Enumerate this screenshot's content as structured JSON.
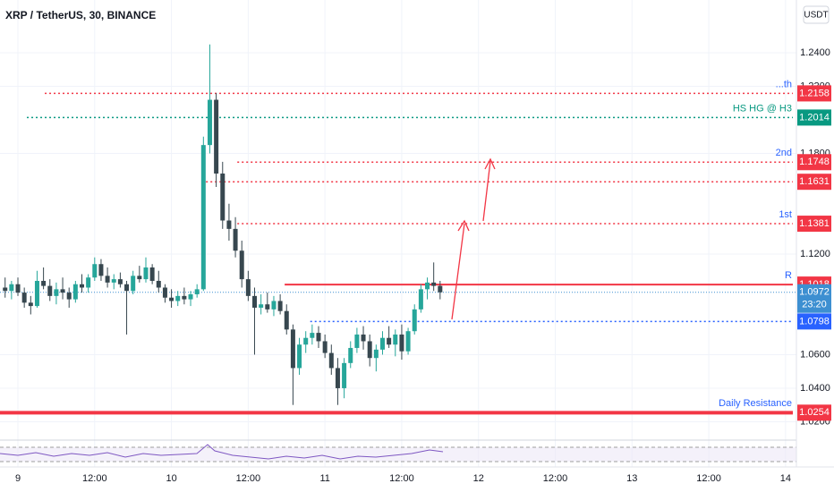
{
  "chart_data": {
    "type": "candlestick",
    "title": "XRP / TetherUS, 30, BINANCE",
    "currency": "USDT",
    "x": [
      -2,
      -1,
      0,
      1,
      2,
      3,
      4,
      5,
      6,
      7,
      8,
      9,
      10,
      11,
      12,
      13,
      14,
      15,
      16,
      17,
      18,
      19,
      20,
      21,
      22,
      23,
      24,
      25,
      26,
      27,
      28,
      29,
      30,
      31,
      32,
      33,
      34,
      35,
      36,
      37,
      38,
      39,
      40,
      41,
      42,
      43,
      44,
      45,
      46,
      47,
      48,
      49,
      50,
      51,
      52,
      53,
      54,
      55,
      56,
      57,
      58,
      59,
      60,
      61,
      62,
      63,
      64,
      65,
      66
    ],
    "open": [
      1.1,
      1.098,
      1.102,
      1.097,
      1.091,
      1.089,
      1.104,
      1.101,
      1.095,
      1.099,
      1.097,
      1.093,
      1.102,
      1.1,
      1.106,
      1.114,
      1.107,
      1.103,
      1.105,
      1.102,
      1.098,
      1.107,
      1.105,
      1.112,
      1.104,
      1.1,
      1.094,
      1.092,
      1.095,
      1.093,
      1.096,
      1.099,
      1.185,
      1.212,
      1.168,
      1.14,
      1.135,
      1.122,
      1.105,
      1.095,
      1.088,
      1.09,
      1.087,
      1.092,
      1.086,
      1.075,
      1.052,
      1.066,
      1.07,
      1.073,
      1.068,
      1.061,
      1.052,
      1.04,
      1.055,
      1.064,
      1.072,
      1.068,
      1.058,
      1.063,
      1.07,
      1.066,
      1.072,
      1.062,
      1.074,
      1.087,
      1.099,
      1.103,
      1.101
    ],
    "high": [
      1.106,
      1.104,
      1.106,
      1.1,
      1.095,
      1.11,
      1.112,
      1.105,
      1.103,
      1.106,
      1.1,
      1.104,
      1.108,
      1.108,
      1.118,
      1.117,
      1.112,
      1.108,
      1.109,
      1.104,
      1.11,
      1.113,
      1.118,
      1.114,
      1.11,
      1.102,
      1.099,
      1.098,
      1.1,
      1.098,
      1.102,
      1.19,
      1.245,
      1.216,
      1.175,
      1.15,
      1.142,
      1.128,
      1.11,
      1.1,
      1.096,
      1.097,
      1.095,
      1.096,
      1.09,
      1.078,
      1.07,
      1.074,
      1.078,
      1.077,
      1.072,
      1.066,
      1.058,
      1.058,
      1.068,
      1.076,
      1.077,
      1.072,
      1.066,
      1.074,
      1.077,
      1.075,
      1.078,
      1.076,
      1.09,
      1.102,
      1.106,
      1.115,
      1.104
    ],
    "low": [
      1.094,
      1.093,
      1.095,
      1.088,
      1.084,
      1.088,
      1.099,
      1.092,
      1.09,
      1.093,
      1.088,
      1.091,
      1.097,
      1.097,
      1.104,
      1.104,
      1.1,
      1.099,
      1.1,
      1.072,
      1.096,
      1.103,
      1.103,
      1.102,
      1.097,
      1.091,
      1.088,
      1.089,
      1.09,
      1.089,
      1.094,
      1.098,
      1.18,
      1.16,
      1.135,
      1.128,
      1.118,
      1.1,
      1.092,
      1.06,
      1.084,
      1.085,
      1.083,
      1.084,
      1.072,
      1.03,
      1.048,
      1.061,
      1.066,
      1.064,
      1.058,
      1.048,
      1.03,
      1.034,
      1.052,
      1.061,
      1.063,
      1.053,
      1.05,
      1.06,
      1.064,
      1.059,
      1.057,
      1.06,
      1.072,
      1.085,
      1.093,
      1.098,
      1.093
    ],
    "close": [
      1.098,
      1.102,
      1.097,
      1.091,
      1.089,
      1.104,
      1.101,
      1.095,
      1.099,
      1.097,
      1.093,
      1.102,
      1.1,
      1.106,
      1.114,
      1.107,
      1.103,
      1.105,
      1.102,
      1.098,
      1.107,
      1.105,
      1.112,
      1.104,
      1.1,
      1.094,
      1.092,
      1.095,
      1.093,
      1.096,
      1.099,
      1.185,
      1.212,
      1.168,
      1.14,
      1.135,
      1.122,
      1.105,
      1.095,
      1.088,
      1.09,
      1.087,
      1.092,
      1.086,
      1.075,
      1.052,
      1.066,
      1.07,
      1.073,
      1.068,
      1.061,
      1.052,
      1.04,
      1.055,
      1.064,
      1.072,
      1.068,
      1.058,
      1.063,
      1.07,
      1.066,
      1.072,
      1.062,
      1.074,
      1.087,
      1.099,
      1.103,
      1.101,
      1.0972
    ],
    "up_color": "#26a69a",
    "down_color": "#37474f",
    "xlim": [
      -2.8,
      121.7
    ],
    "ylim": [
      1.0101,
      1.2715
    ],
    "xticks": [
      {
        "value": 0,
        "label": "9"
      },
      {
        "value": 12,
        "label": "12:00"
      },
      {
        "value": 24,
        "label": "10"
      },
      {
        "value": 36,
        "label": "12:00"
      },
      {
        "value": 48,
        "label": "11"
      },
      {
        "value": 60,
        "label": "12:00"
      },
      {
        "value": 72,
        "label": "12"
      },
      {
        "value": 84,
        "label": "12:00"
      },
      {
        "value": 96,
        "label": "13"
      },
      {
        "value": 108,
        "label": "12:00"
      },
      {
        "value": 120,
        "label": "14"
      }
    ],
    "yticks": [
      {
        "value": 1.24,
        "label": "1.2400"
      },
      {
        "value": 1.22,
        "label": "1.2200"
      },
      {
        "value": 1.18,
        "label": "1.1800"
      },
      {
        "value": 1.12,
        "label": "1.1200"
      },
      {
        "value": 1.06,
        "label": "1.0600"
      },
      {
        "value": 1.04,
        "label": "1.0400"
      },
      {
        "value": 1.02,
        "label": "1.0200"
      }
    ],
    "levels": [
      {
        "price": 1.2158,
        "color": "#f23645",
        "style": "dotted",
        "x_start": 4.2,
        "label": "...th"
      },
      {
        "price": 1.2014,
        "color": "#089981",
        "style": "dotted",
        "x_start": 1.4,
        "label": "HS HG @ H3"
      },
      {
        "price": 1.1748,
        "color": "#f23645",
        "style": "dotted",
        "x_start": 34.3,
        "label": "2nd"
      },
      {
        "price": 1.1631,
        "color": "#f23645",
        "style": "dotted",
        "x_start": 29.4
      },
      {
        "price": 1.1381,
        "color": "#f23645",
        "style": "dotted",
        "x_start": 34.3,
        "label": "1st"
      },
      {
        "price": 1.1018,
        "color": "#f23645",
        "style": "solid",
        "x_start": 41.7,
        "label": "R"
      },
      {
        "price": 1.0798,
        "color": "#2962ff",
        "style": "dotted",
        "x_start": 45.7
      },
      {
        "price": 1.0254,
        "color": "#f23645",
        "style": "thick",
        "x_start": -2.8,
        "label": "Daily Resistance"
      }
    ],
    "last": {
      "price": 1.0972,
      "countdown": "23:20",
      "color": "#3d8fd1"
    }
  }
}
